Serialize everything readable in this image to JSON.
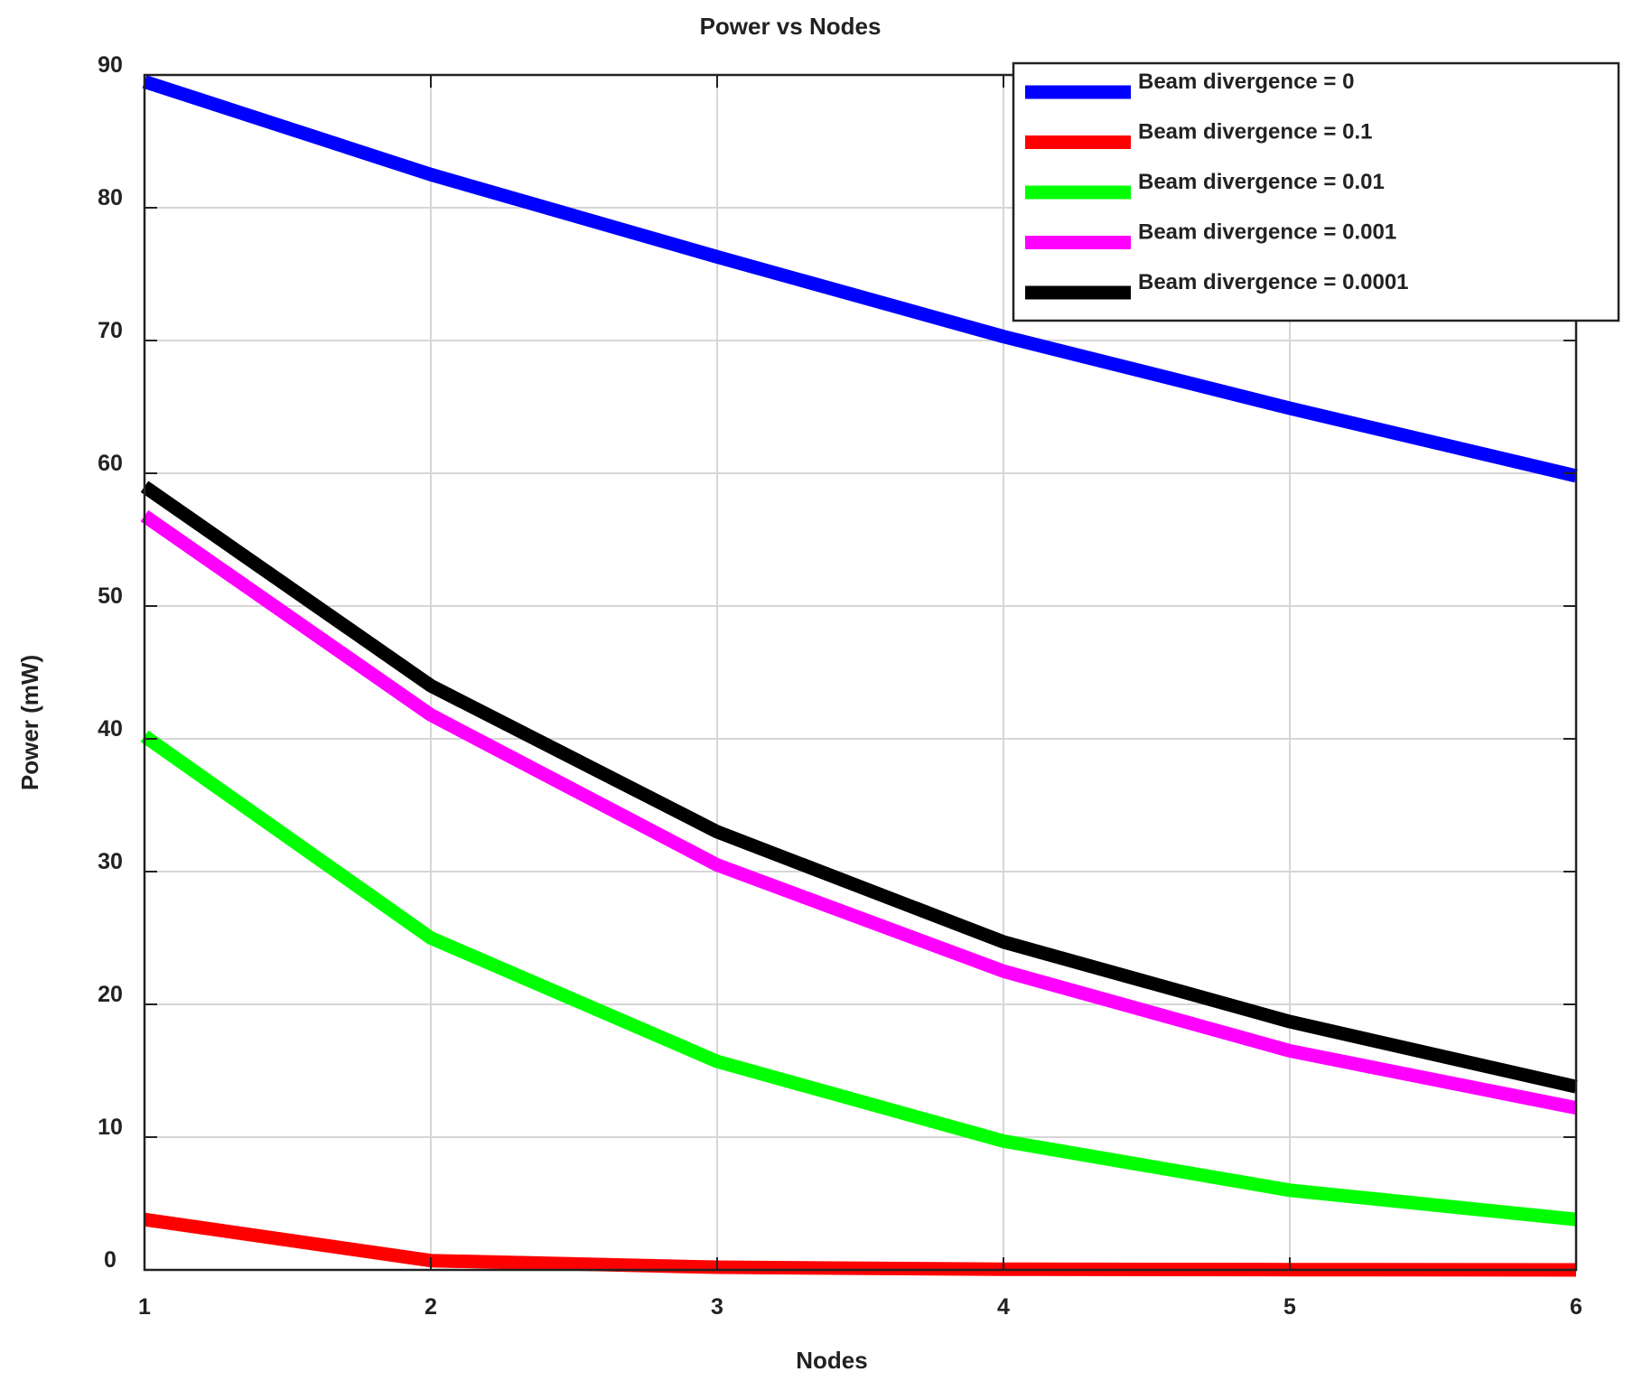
{
  "chart_data": {
    "type": "line",
    "title": "Power vs Nodes",
    "xlabel": "Nodes",
    "ylabel": "Power (mW)",
    "x": [
      1,
      2,
      3,
      4,
      5,
      6
    ],
    "xlim": [
      1,
      6
    ],
    "ylim": [
      0,
      90
    ],
    "xticks": [
      "1",
      "2",
      "3",
      "4",
      "5",
      "6"
    ],
    "yticks": [
      "0",
      "10",
      "20",
      "30",
      "40",
      "50",
      "60",
      "70",
      "80",
      "90"
    ],
    "grid": true,
    "legend_position": "top-right",
    "series": [
      {
        "name": "Beam divergence = 0",
        "color": "#0000ff",
        "values": [
          89.5,
          82.5,
          76.3,
          70.3,
          64.9,
          59.8
        ]
      },
      {
        "name": "Beam divergence = 0.1",
        "color": "#ff0000",
        "values": [
          3.8,
          0.7,
          0.2,
          0.05,
          0.02,
          0.0
        ]
      },
      {
        "name": "Beam divergence = 0.01",
        "color": "#00ff00",
        "values": [
          40.2,
          25.0,
          15.7,
          9.7,
          6.0,
          3.8
        ]
      },
      {
        "name": "Beam divergence = 0.001",
        "color": "#ff00ff",
        "values": [
          56.8,
          41.8,
          30.5,
          22.5,
          16.5,
          12.2
        ]
      },
      {
        "name": "Beam divergence = 0.0001",
        "color": "#000000",
        "values": [
          59.0,
          44.0,
          33.0,
          24.7,
          18.7,
          13.8
        ]
      }
    ]
  }
}
